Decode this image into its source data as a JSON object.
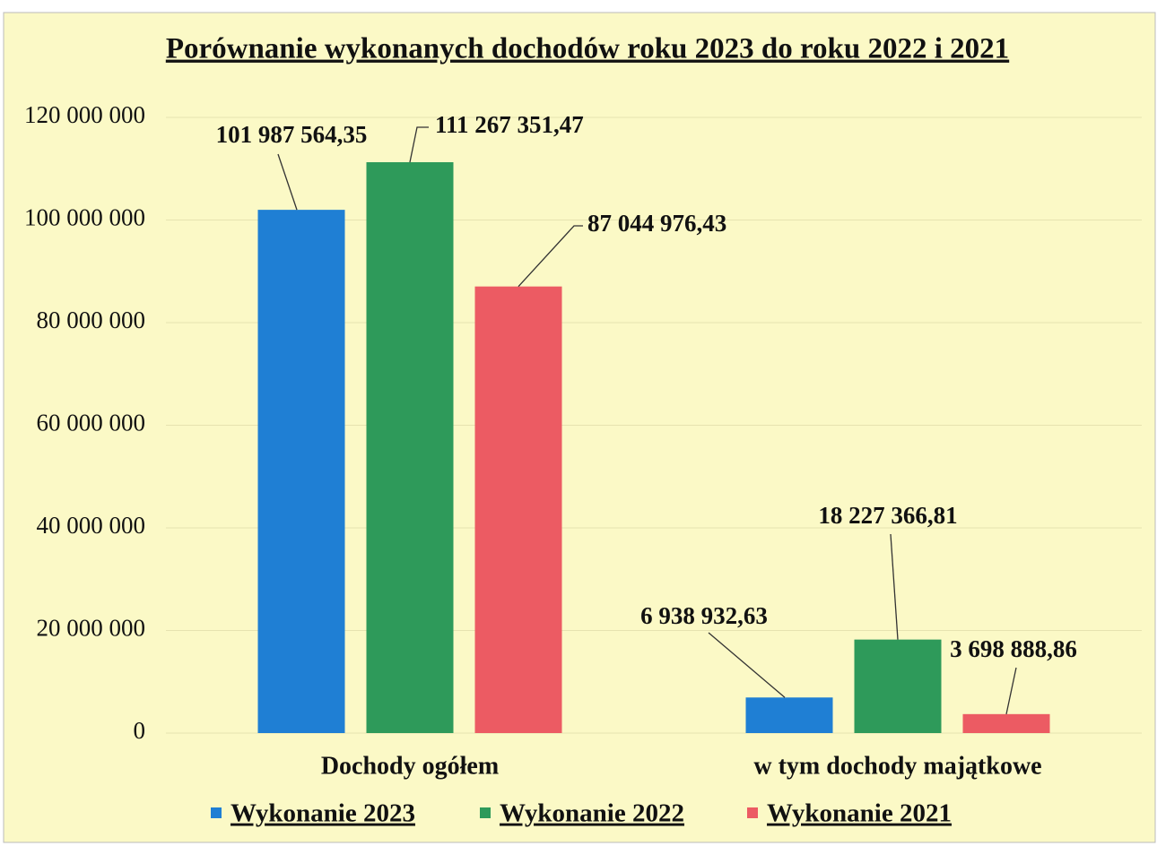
{
  "chart_data": {
    "type": "bar",
    "title": "Porównanie wykonanych dochodów roku 2023 do roku 2022 i 2021",
    "categories": [
      "Dochody ogółem",
      "w tym dochody majątkowe"
    ],
    "series": [
      {
        "name": "Wykonanie 2023",
        "color": "#1f7fd4",
        "values": [
          101987564.35,
          6938932.63
        ],
        "value_labels": [
          "101 987 564,35",
          "6 938 932,63"
        ]
      },
      {
        "name": "Wykonanie 2022",
        "color": "#2e9a5a",
        "values": [
          111267351.47,
          18227366.81
        ],
        "value_labels": [
          "111 267 351,47",
          "18 227 366,81"
        ]
      },
      {
        "name": "Wykonanie 2021",
        "color": "#ec5b63",
        "values": [
          87044976.43,
          3698888.86
        ],
        "value_labels": [
          "87 044 976,43",
          "3 698 888,86"
        ]
      }
    ],
    "ylim": [
      0,
      120000000
    ],
    "yticks": [
      0,
      {
        "value": 20000000,
        "label": "20 000 000"
      },
      {
        "value": 40000000,
        "label": "40 000 000"
      },
      {
        "value": 60000000,
        "label": "60 000 000"
      },
      {
        "value": 80000000,
        "label": "80 000 000"
      },
      {
        "value": 100000000,
        "label": "100 000 000"
      },
      {
        "value": 120000000,
        "label": "120 000 000"
      }
    ],
    "grid": true,
    "legend": "bottom"
  }
}
